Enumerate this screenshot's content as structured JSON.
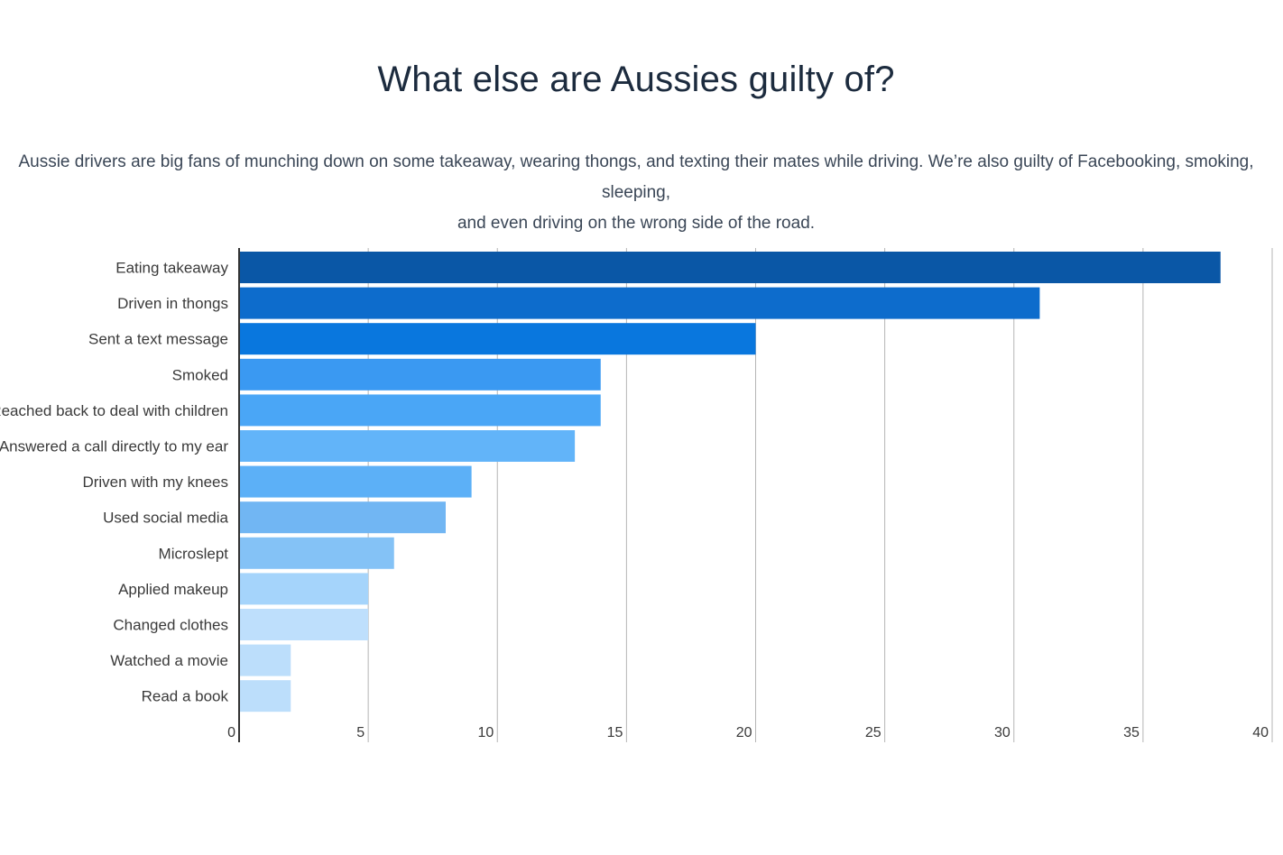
{
  "header": {
    "title": "What else are Aussies guilty of?",
    "subtitle_line1": "Aussie drivers are big fans of munching down on some takeaway, wearing thongs, and texting their mates while driving. We’re also guilty of Facebooking, smoking, sleeping,",
    "subtitle_line2": "and even driving on the wrong side of the road."
  },
  "chart_data": {
    "type": "bar",
    "orientation": "horizontal",
    "title": "What else are Aussies guilty of?",
    "categories": [
      "Eating takeaway",
      "Driven in thongs",
      "Sent a text message",
      "Smoked",
      "Reached back to deal with children",
      "Answered a call directly to my ear",
      "Driven with my knees",
      "Used social media",
      "Microslept",
      "Applied makeup",
      "Changed clothes",
      "Watched a movie",
      "Read a book"
    ],
    "values": [
      38,
      31,
      20,
      14,
      14,
      13,
      9,
      8,
      6,
      5,
      5,
      2,
      2
    ],
    "colors": [
      "#0a57a6",
      "#0d6ccc",
      "#0977de",
      "#3a99f2",
      "#4aa6f6",
      "#62b4f9",
      "#5cb0f7",
      "#71b6f3",
      "#84c2f6",
      "#a5d4fb",
      "#bedffc",
      "#bcdefb",
      "#bcdefb"
    ],
    "xlim": [
      0,
      40
    ],
    "xticks": [
      "0",
      "5",
      "10",
      "15",
      "20",
      "25",
      "30",
      "35",
      "40"
    ],
    "grid": true,
    "xlabel": "",
    "ylabel": ""
  }
}
